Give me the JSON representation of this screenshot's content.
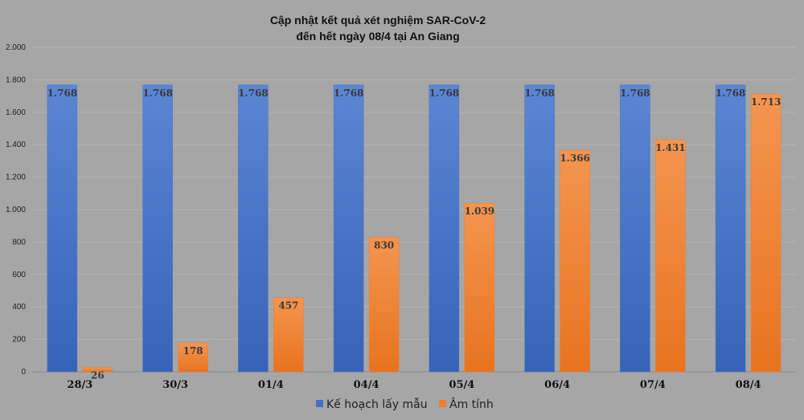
{
  "chart_data": {
    "type": "bar",
    "title": "Cập nhật kết quả xét nghiệm SAR-CoV-2",
    "subtitle": "đến hết ngày 08/4 tại An Giang",
    "categories": [
      "28/3",
      "30/3",
      "01/4",
      "04/4",
      "05/4",
      "06/4",
      "07/4",
      "08/4"
    ],
    "series": [
      {
        "name": "Kế hoạch lấy mẫu",
        "color": "#4472c4",
        "values": [
          1768,
          1768,
          1768,
          1768,
          1768,
          1768,
          1768,
          1768
        ],
        "labels": [
          "1.768",
          "1.768",
          "1.768",
          "1.768",
          "1.768",
          "1.768",
          "1.768",
          "1.768"
        ]
      },
      {
        "name": "Âm tính",
        "color": "#ed7d31",
        "values": [
          26,
          178,
          457,
          830,
          1039,
          1366,
          1431,
          1713
        ],
        "labels": [
          "26",
          "178",
          "457",
          "830",
          "1.039",
          "1.366",
          "1.431",
          "1.713"
        ]
      }
    ],
    "ylim": [
      0,
      2000
    ],
    "yticks": [
      0,
      200,
      400,
      600,
      800,
      1000,
      1200,
      1400,
      1600,
      1800,
      2000
    ],
    "ytick_labels": [
      "0",
      "200",
      "400",
      "600",
      "800",
      "1.000",
      "1.200",
      "1.400",
      "1.600",
      "1.800",
      "2.000"
    ],
    "grid": true,
    "legend_position": "bottom"
  }
}
